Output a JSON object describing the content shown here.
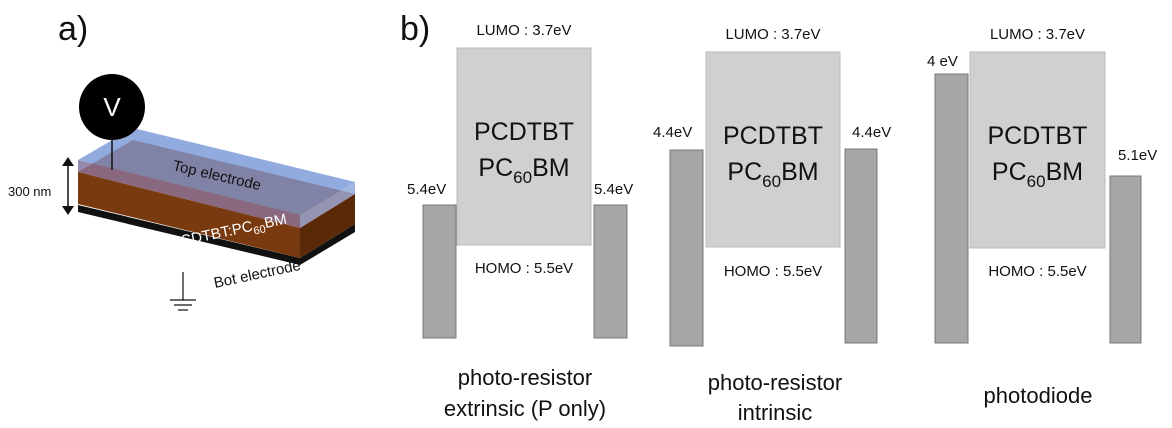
{
  "panel_a": {
    "label": "a)",
    "voltage": "V",
    "thickness": "300 nm",
    "top_layer": "Top electrode",
    "active_layer": {
      "prefix": "PCDTBT:PC",
      "sub": "60",
      "suffix": "BM"
    },
    "bottom_layer": "Bot electrode"
  },
  "panel_b": {
    "label": "b)",
    "diagrams": [
      {
        "lumo": "LUMO : 3.7eV",
        "homo": "HOMO : 5.5eV",
        "material_1": "PCDTBT",
        "material_2": {
          "prefix": "PC",
          "sub": "60",
          "suffix": "BM"
        },
        "left_level": "5.4eV",
        "right_level": "5.4eV",
        "caption": [
          "photo-resistor",
          "extrinsic (P only)"
        ]
      },
      {
        "lumo": "LUMO : 3.7eV",
        "homo": "HOMO : 5.5eV",
        "material_1": "PCDTBT",
        "material_2": {
          "prefix": "PC",
          "sub": "60",
          "suffix": "BM"
        },
        "left_level": "4.4eV",
        "right_level": "4.4eV",
        "caption": [
          "photo-resistor",
          "intrinsic"
        ]
      },
      {
        "lumo": "LUMO : 3.7eV",
        "homo": "HOMO : 5.5eV",
        "material_1": "PCDTBT",
        "material_2": {
          "prefix": "PC",
          "sub": "60",
          "suffix": "BM"
        },
        "left_level": "4 eV",
        "right_level": "5.1eV",
        "caption": [
          "photodiode"
        ]
      }
    ]
  }
}
